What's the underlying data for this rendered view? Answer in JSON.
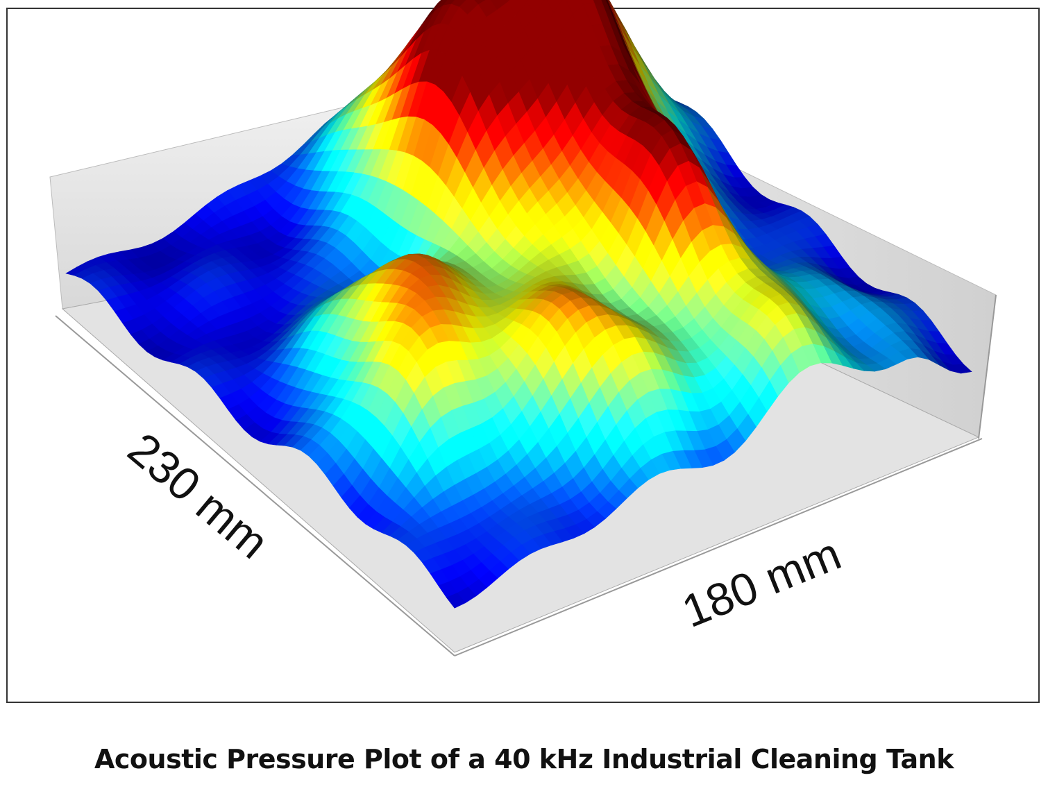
{
  "chart_data": {
    "type": "surface",
    "title": "Acoustic Pressure Plot of a 40 kHz Industrial Cleaning Tank",
    "xlabel": "230 mm",
    "ylabel": "180 mm"
  }
}
